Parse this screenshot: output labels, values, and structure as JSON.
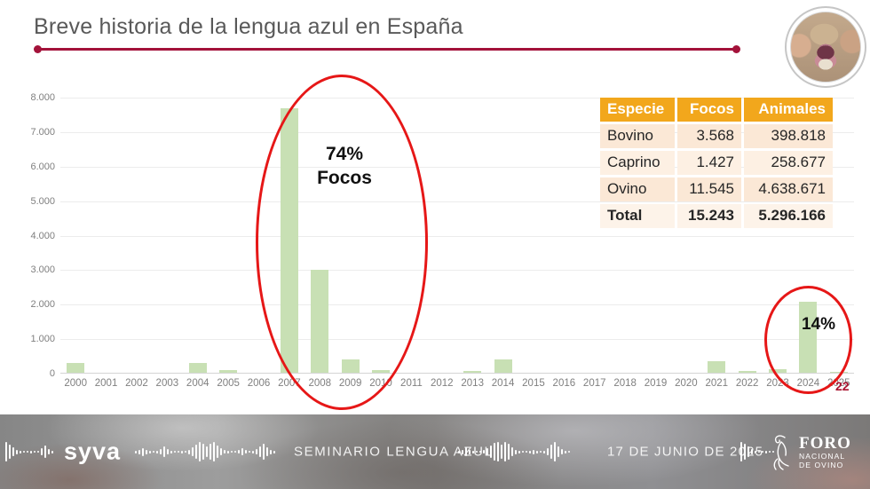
{
  "slide": {
    "title": "Breve historia de la lengua azul en España",
    "page_number": "22"
  },
  "chart_data": {
    "type": "bar",
    "title": "",
    "xlabel": "",
    "ylabel": "",
    "categories": [
      "2000",
      "2001",
      "2002",
      "2003",
      "2004",
      "2005",
      "2006",
      "2007",
      "2008",
      "2009",
      "2010",
      "2011",
      "2012",
      "2013",
      "2014",
      "2015",
      "2016",
      "2017",
      "2018",
      "2019",
      "2020",
      "2021",
      "2022",
      "2023",
      "2024",
      "2025"
    ],
    "values": [
      300,
      0,
      0,
      0,
      300,
      100,
      0,
      7700,
      3000,
      400,
      100,
      0,
      0,
      80,
      400,
      30,
      0,
      0,
      0,
      0,
      30,
      350,
      70,
      120,
      2080,
      50
    ],
    "ylim": [
      0,
      8000
    ],
    "ytick_labels": [
      "0",
      "1.000",
      "2.000",
      "3.000",
      "4.000",
      "5.000",
      "6.000",
      "7.000",
      "8.000"
    ],
    "grid": "horizontal",
    "legend": "none",
    "bar_color": "#c8e0b4",
    "annotations": [
      {
        "lines": [
          "74%",
          "Focos"
        ],
        "target": "2007-2009 peak",
        "shape": "red-ellipse"
      },
      {
        "lines": [
          "14%"
        ],
        "target": "2024 peak",
        "shape": "red-ellipse"
      }
    ]
  },
  "table": {
    "headers": [
      "Especie",
      "Focos",
      "Animales"
    ],
    "rows": [
      {
        "especie": "Bovino",
        "focos": "3.568",
        "animales": "398.818",
        "bold": false
      },
      {
        "especie": "Caprino",
        "focos": "1.427",
        "animales": "258.677",
        "bold": false
      },
      {
        "especie": "Ovino",
        "focos": "11.545",
        "animales": "4.638.671",
        "bold": false
      },
      {
        "especie": "Total",
        "focos": "15.243",
        "animales": "5.296.166",
        "bold": true
      }
    ]
  },
  "footer": {
    "brand": "syva",
    "seminar_title": "SEMINARIO LENGUA AZUL",
    "date": "17 DE JUNIO DE 2025",
    "foro_logo_lines": [
      "FORO",
      "NACIONAL",
      "DE OVINO"
    ]
  },
  "icons": {
    "audio_waveform": "waveform-icon",
    "foro_goat": "goat-lineart-icon",
    "title_accent": "underline-with-end-dots"
  },
  "colors": {
    "accent_line": "#a3123a",
    "ellipse_red": "#e61717",
    "bar_green": "#c8e0b4",
    "title_gray": "#595959",
    "page_number_red": "#a9132f",
    "table_header_orange": "#f2a71c",
    "table_row_peach": "#fbe8d6",
    "table_row_light": "#fdf0e3"
  }
}
